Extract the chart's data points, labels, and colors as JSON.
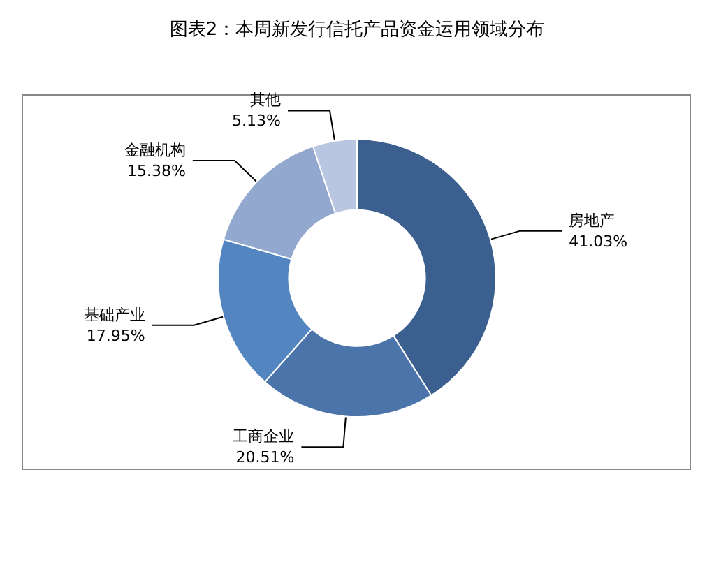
{
  "chart_data": {
    "type": "donut",
    "title": "图表2：本周新发行信托产品资金运用领域分布",
    "categories": [
      "房地产",
      "工商企业",
      "基础产业",
      "金融机构",
      "其他"
    ],
    "values": [
      41.03,
      20.51,
      17.95,
      15.38,
      5.13
    ],
    "colors": [
      "#3b5f8e",
      "#4a74aa",
      "#5386c1",
      "#93a8cf",
      "#b9c6e1"
    ],
    "value_labels": [
      "41.03%",
      "20.51%",
      "17.95%",
      "15.38%",
      "5.13%"
    ],
    "legend": false
  }
}
